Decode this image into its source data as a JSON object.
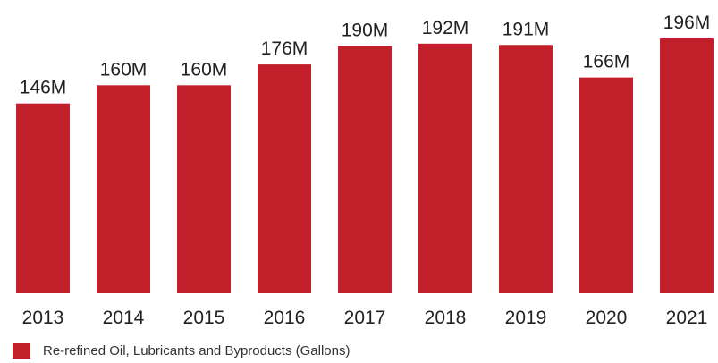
{
  "chart_data": {
    "type": "bar",
    "categories": [
      "2013",
      "2014",
      "2015",
      "2016",
      "2017",
      "2018",
      "2019",
      "2020",
      "2021"
    ],
    "series": [
      {
        "name": "Re-refined Oil, Lubricants and Byproducts (Gallons)",
        "values": [
          146,
          160,
          160,
          176,
          190,
          192,
          191,
          166,
          196
        ],
        "value_labels": [
          "146M",
          "160M",
          "160M",
          "176M",
          "190M",
          "192M",
          "191M",
          "166M",
          "196M"
        ],
        "color": "#c1202a"
      }
    ],
    "unit": "M",
    "ylim": [
      0,
      196
    ],
    "grid": false,
    "legend_position": "bottom-left"
  }
}
